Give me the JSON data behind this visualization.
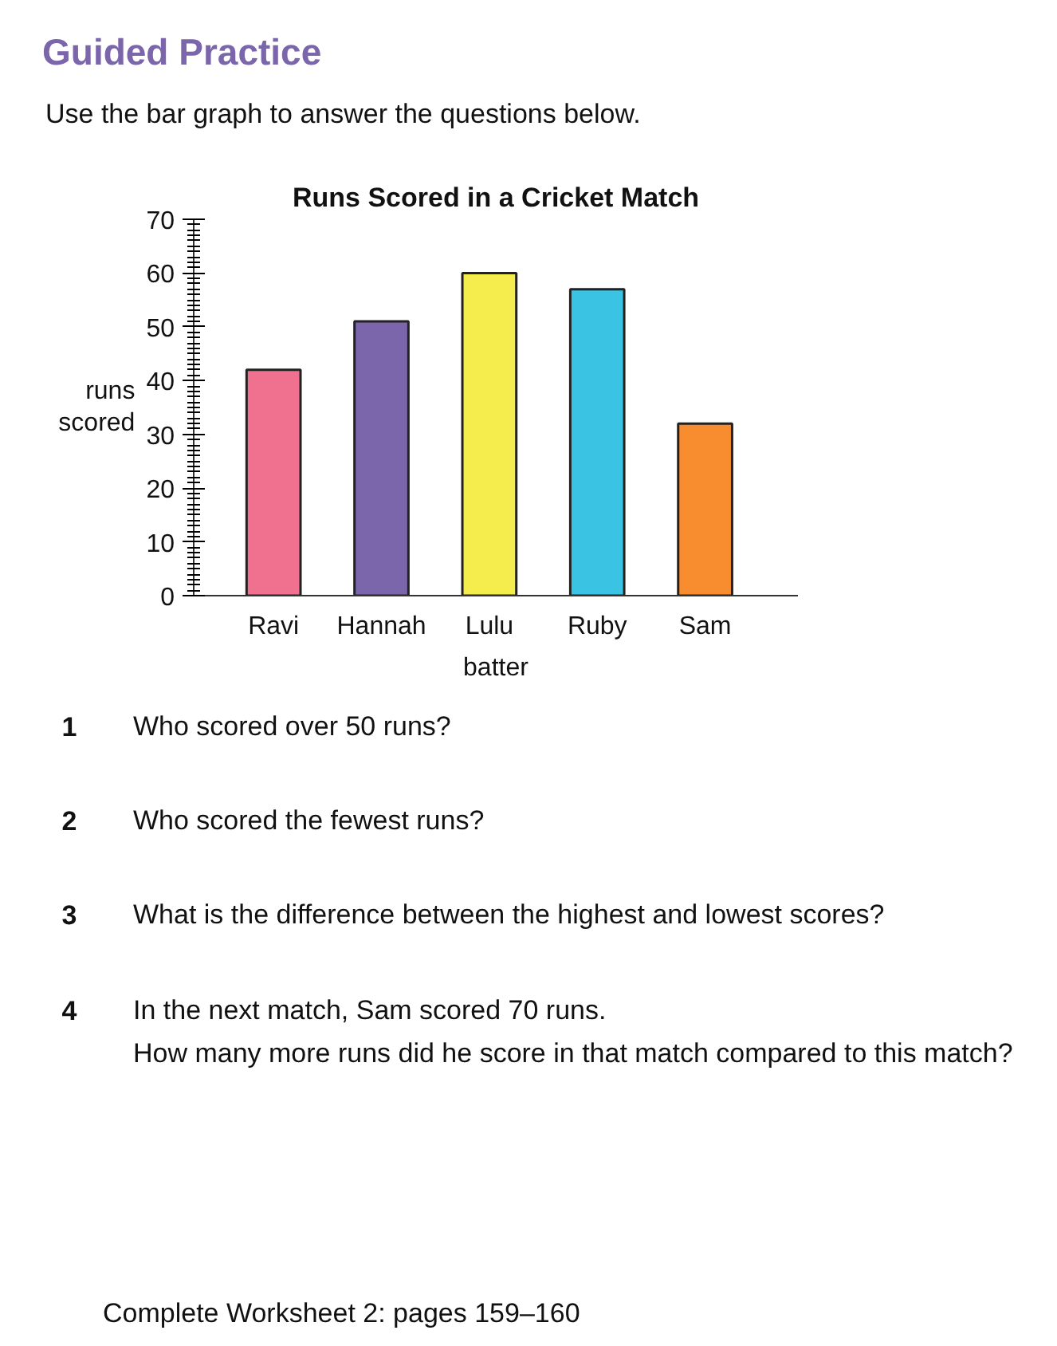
{
  "chart_data": {
    "type": "bar",
    "title": "Runs Scored in a Cricket Match",
    "xlabel": "batter",
    "ylabel": "runs scored",
    "categories": [
      "Ravi",
      "Hannah",
      "Lulu",
      "Ruby",
      "Sam"
    ],
    "values": [
      42,
      51,
      60,
      57,
      32
    ],
    "colors": [
      "#f07090",
      "#7b65ab",
      "#f5ec4e",
      "#3bc3e3",
      "#f78d2e"
    ],
    "ylim": [
      0,
      70
    ],
    "yticks": [
      0,
      10,
      20,
      30,
      40,
      50,
      60,
      70
    ],
    "annotations": [
      "Guided Practice",
      "Use the bar graph to answer the questions below.",
      "1",
      "Who scored over 50 runs?",
      "2",
      "Who scored the fewest runs?",
      "3",
      "What is the difference between the highest and lowest scores?",
      "4",
      "In the next match, Sam scored 70 runs.",
      "How many more runs did he score in that match compared to this match?",
      "Complete Worksheet 2: pages 159–160"
    ]
  }
}
